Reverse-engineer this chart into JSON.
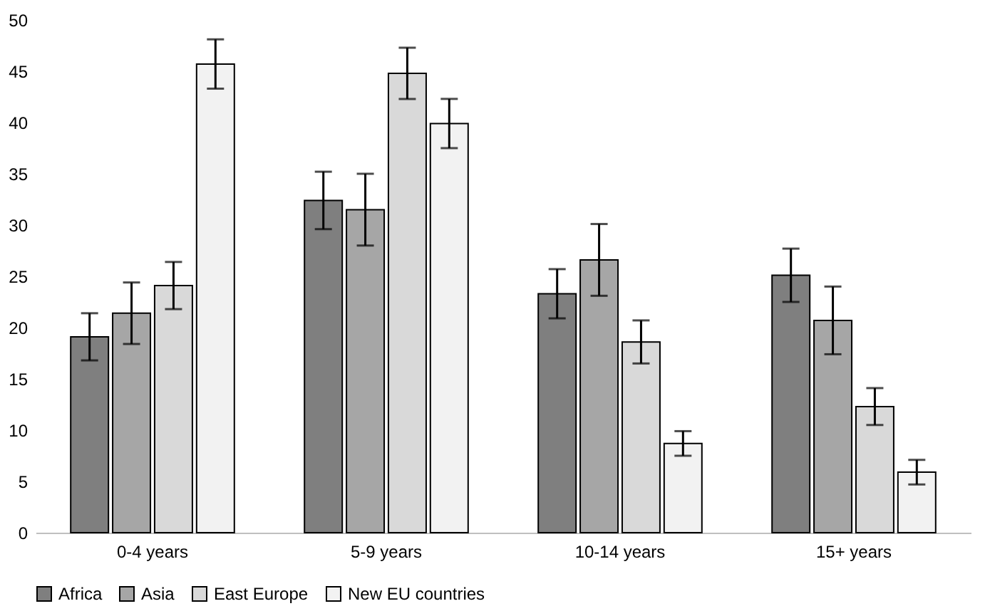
{
  "chart_data": {
    "type": "bar",
    "categories": [
      "0-4 years",
      "5-9 years",
      "10-14 years",
      "15+ years"
    ],
    "series": [
      {
        "name": "Africa",
        "color": "#7f7f7f",
        "values": [
          19.1,
          32.4,
          23.3,
          25.1
        ],
        "errors": [
          2.3,
          2.8,
          2.4,
          2.6
        ]
      },
      {
        "name": "Asia",
        "color": "#a6a6a6",
        "values": [
          21.4,
          31.5,
          26.6,
          20.7
        ],
        "errors": [
          3.0,
          3.5,
          3.5,
          3.3
        ]
      },
      {
        "name": "East Europe",
        "color": "#d9d9d9",
        "values": [
          24.1,
          44.8,
          18.6,
          12.3
        ],
        "errors": [
          2.3,
          2.5,
          2.1,
          1.8
        ]
      },
      {
        "name": "New EU countries",
        "color": "#f2f2f2",
        "values": [
          45.7,
          39.9,
          8.7,
          5.9
        ],
        "errors": [
          2.4,
          2.4,
          1.2,
          1.2
        ]
      }
    ],
    "ylim": [
      0,
      50
    ],
    "yticks": [
      0,
      5,
      10,
      15,
      20,
      25,
      30,
      35,
      40,
      45,
      50
    ],
    "grid": false,
    "legend": "bottom"
  }
}
